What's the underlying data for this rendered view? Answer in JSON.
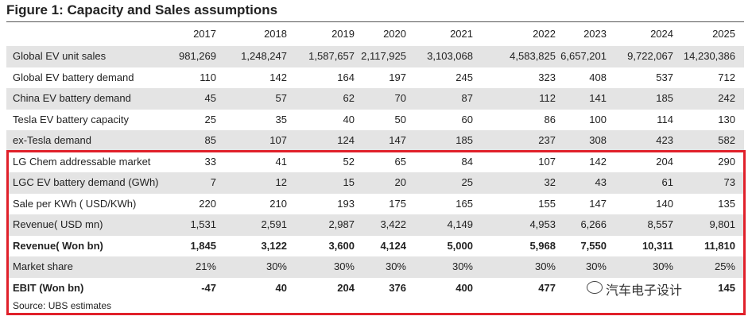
{
  "title": "Figure 1: Capacity and Sales assumptions",
  "table": {
    "header": [
      "2017",
      "2018",
      "2019",
      "2020",
      "2021",
      "2022",
      "2023",
      "2024",
      "2025"
    ],
    "rows": [
      [
        "Global EV unit sales",
        "981,269",
        "1,248,247",
        "1,587,657",
        "2,117,925",
        "3,103,068",
        "4,583,825",
        "6,657,201",
        "9,722,067",
        "14,230,386"
      ],
      [
        "Global EV battery demand",
        "110",
        "142",
        "164",
        "197",
        "245",
        "323",
        "408",
        "537",
        "712"
      ],
      [
        "China EV battery demand",
        "45",
        "57",
        "62",
        "70",
        "87",
        "112",
        "141",
        "185",
        "242"
      ],
      [
        "Tesla EV battery capacity",
        "25",
        "35",
        "40",
        "50",
        "60",
        "86",
        "100",
        "114",
        "130"
      ],
      [
        "ex-Tesla demand",
        "85",
        "107",
        "124",
        "147",
        "185",
        "237",
        "308",
        "423",
        "582"
      ],
      [
        "LG Chem addressable market",
        "33",
        "41",
        "52",
        "65",
        "84",
        "107",
        "142",
        "204",
        "290"
      ],
      [
        "LGC EV battery demand (GWh)",
        "7",
        "12",
        "15",
        "20",
        "25",
        "32",
        "43",
        "61",
        "73"
      ],
      [
        "Sale per KWh ( USD/KWh)",
        "220",
        "210",
        "193",
        "175",
        "165",
        "155",
        "147",
        "140",
        "135"
      ],
      [
        "Revenue( USD mn)",
        "1,531",
        "2,591",
        "2,987",
        "3,422",
        "4,149",
        "4,953",
        "6,266",
        "8,557",
        "9,801"
      ],
      [
        "Revenue( Won bn)",
        "1,845",
        "3,122",
        "3,600",
        "4,124",
        "5,000",
        "5,968",
        "7,550",
        "10,311",
        "11,810"
      ],
      [
        "Market share",
        "21%",
        "30%",
        "30%",
        "30%",
        "30%",
        "30%",
        "30%",
        "30%",
        "25%"
      ],
      [
        "EBIT (Won bn)",
        "-47",
        "40",
        "204",
        "376",
        "400",
        "477",
        "",
        "",
        "145"
      ]
    ]
  },
  "source": "Source:  UBS estimates",
  "watermark": "汽车电子设计"
}
